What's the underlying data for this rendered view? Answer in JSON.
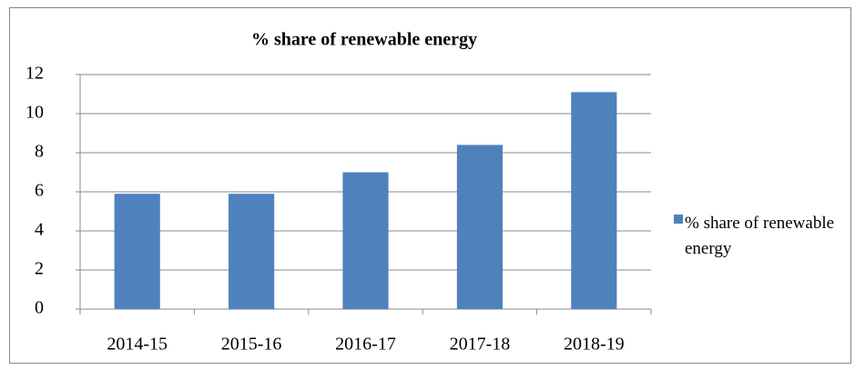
{
  "chart_data": {
    "type": "bar",
    "title": "% share of renewable energy",
    "categories": [
      "2014-15",
      "2015-16",
      "2016-17",
      "2017-18",
      "2018-19"
    ],
    "series": [
      {
        "name": "% share of renewable energy",
        "color": "#4f81bd",
        "values": [
          5.9,
          5.9,
          7.0,
          8.4,
          11.1
        ]
      }
    ],
    "ylim": [
      0,
      12
    ],
    "yticks": [
      0,
      2,
      4,
      6,
      8,
      10,
      12
    ],
    "grid": true,
    "legend": "right"
  }
}
